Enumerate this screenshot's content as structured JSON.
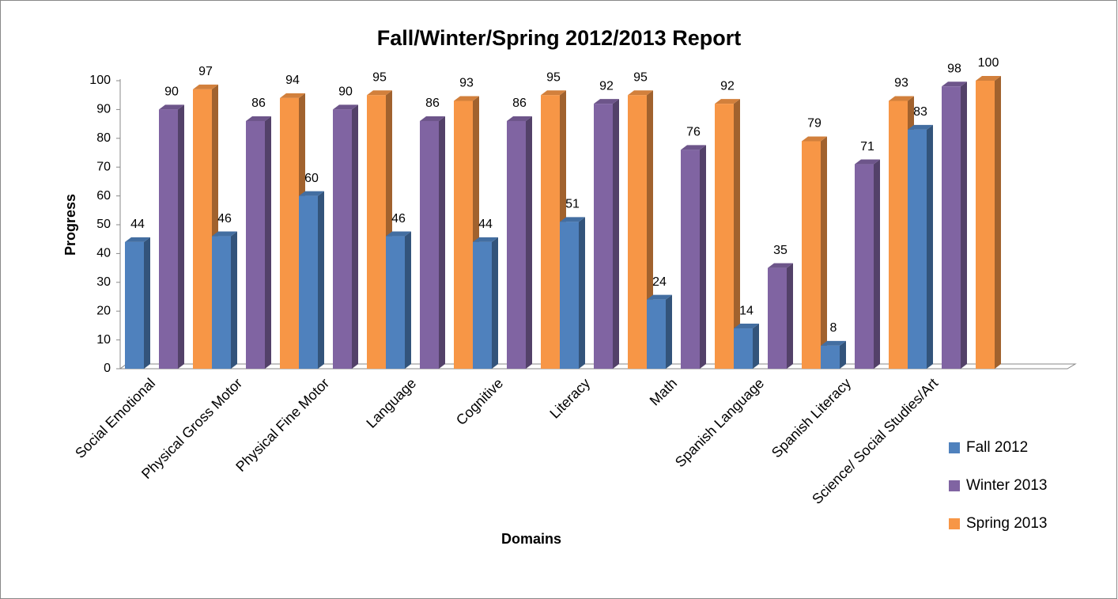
{
  "chart_data": {
    "type": "bar3d",
    "title": "Fall/Winter/Spring 2012/2013 Report",
    "x_label": "Domains",
    "y_label": "Progress",
    "categories": [
      "Social Emotional",
      "Physical Gross Motor",
      "Physical Fine  Motor",
      "Language",
      "Cognitive",
      "Literacy",
      "Math",
      "Spanish Language",
      "Spanish Literacy",
      "Science/ Social Studies/Art"
    ],
    "series": [
      {
        "name": "Fall 2012",
        "color": "#4f81bd",
        "values": [
          44,
          46,
          60,
          46,
          44,
          51,
          24,
          14,
          8,
          83
        ]
      },
      {
        "name": "Winter 2013",
        "color": "#8064a2",
        "values": [
          90,
          86,
          90,
          86,
          86,
          92,
          76,
          35,
          71,
          98
        ]
      },
      {
        "name": "Spring 2013",
        "color": "#f79646",
        "values": [
          97,
          94,
          95,
          93,
          95,
          95,
          92,
          79,
          93,
          100
        ]
      }
    ],
    "ylim": [
      0,
      100
    ],
    "yticks": [
      0,
      10,
      20,
      30,
      40,
      50,
      60,
      70,
      80,
      90,
      100
    ],
    "legend": "bottom-right"
  }
}
